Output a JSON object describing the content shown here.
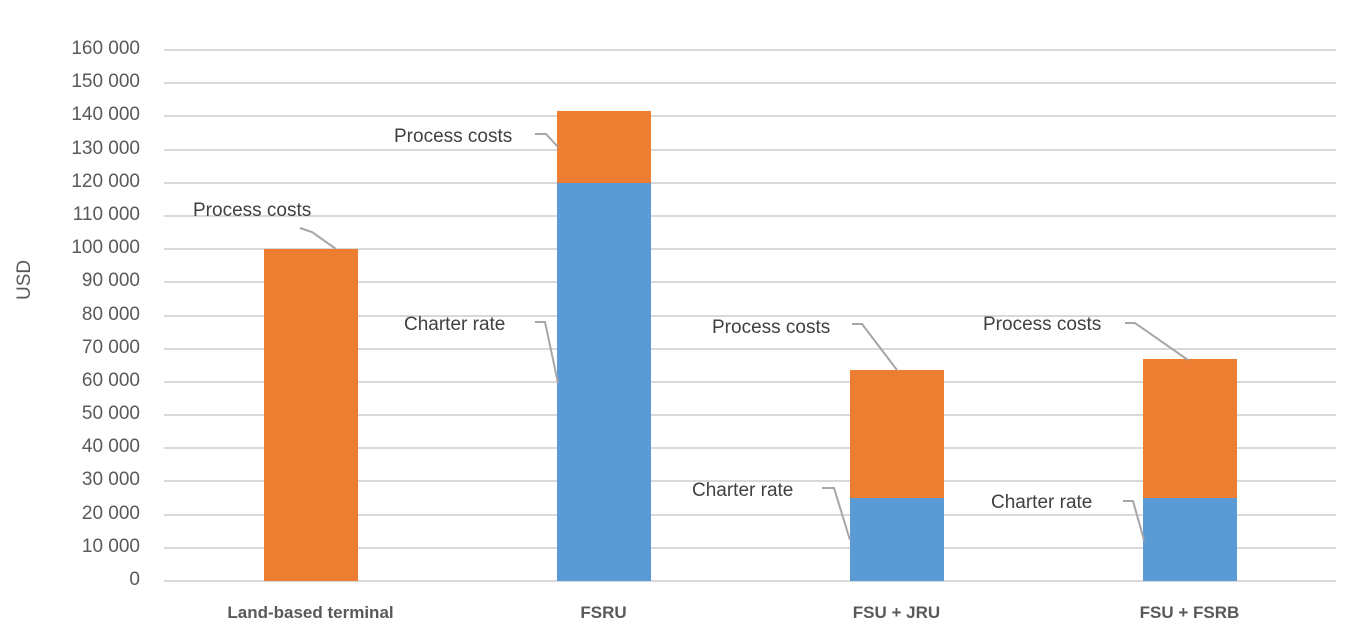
{
  "chart_data": {
    "type": "bar",
    "stacked": true,
    "title": "",
    "xlabel": "",
    "ylabel": "USD",
    "ylim": [
      0,
      160000
    ],
    "yticks": [
      0,
      10000,
      20000,
      30000,
      40000,
      50000,
      60000,
      70000,
      80000,
      90000,
      100000,
      110000,
      120000,
      130000,
      140000,
      150000,
      160000
    ],
    "ytick_labels": [
      "0",
      "10 000",
      "20 000",
      "30 000",
      "40 000",
      "50 000",
      "60 000",
      "70 000",
      "80 000",
      "90 000",
      "100 000",
      "110 000",
      "120 000",
      "130 000",
      "140 000",
      "150 000",
      "160 000"
    ],
    "grid": true,
    "legend": null,
    "categories": [
      "Land-based terminal",
      "FSRU",
      "FSU + JRU",
      "FSU + FSRB"
    ],
    "series": [
      {
        "name": "Charter rate",
        "color": "#5b9bd5",
        "values": [
          0,
          120000,
          25000,
          25000
        ]
      },
      {
        "name": "Process costs",
        "color": "#ed7d31",
        "values": [
          100000,
          21500,
          38500,
          42000
        ]
      }
    ],
    "annotations": [
      {
        "category": "Land-based terminal",
        "series": "Process costs",
        "text": "Process costs"
      },
      {
        "category": "FSRU",
        "series": "Process costs",
        "text": "Process costs"
      },
      {
        "category": "FSRU",
        "series": "Charter rate",
        "text": "Charter rate"
      },
      {
        "category": "FSU + JRU",
        "series": "Process costs",
        "text": "Process costs"
      },
      {
        "category": "FSU + JRU",
        "series": "Charter rate",
        "text": "Charter rate"
      },
      {
        "category": "FSU + FSRB",
        "series": "Process costs",
        "text": "Process costs"
      },
      {
        "category": "FSU + FSRB",
        "series": "Charter rate",
        "text": "Charter rate"
      }
    ]
  },
  "axis": {
    "ylabel": "USD"
  },
  "labels": {
    "land_process": "Process costs",
    "fsru_process": "Process costs",
    "fsru_charter": "Charter rate",
    "jru_process": "Process costs",
    "jru_charter": "Charter rate",
    "fsrb_process": "Process costs",
    "fsrb_charter": "Charter rate"
  }
}
